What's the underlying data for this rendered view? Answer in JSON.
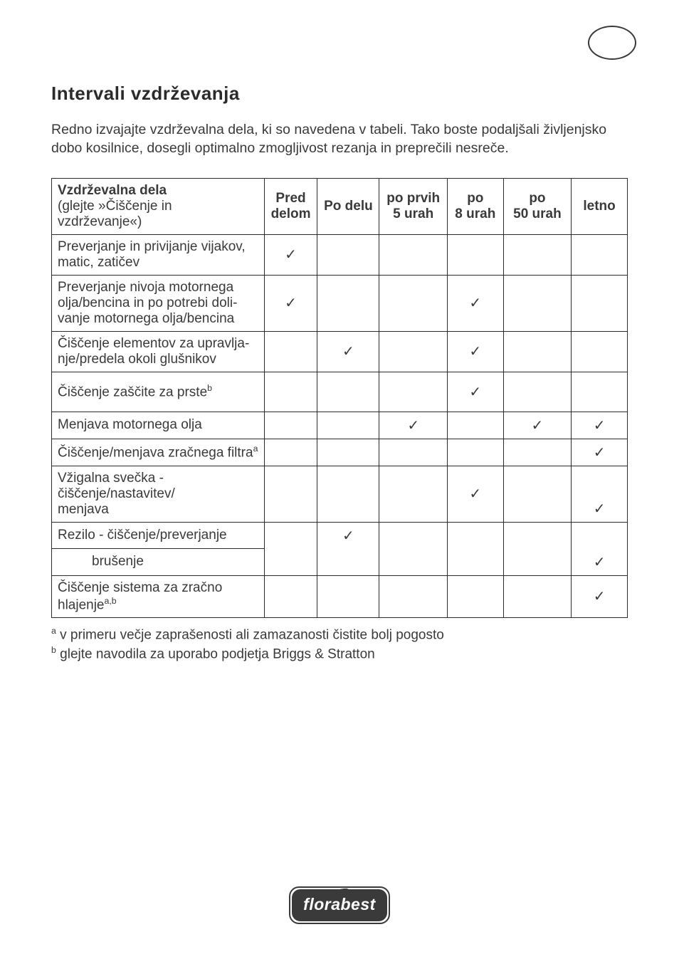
{
  "corner_oval": true,
  "heading": "Intervali vzdrževanja",
  "intro": "Redno izvajajte vzdrževalna dela, ki so navedena v tabeli. Tako boste podaljšali življenjsko dobo kosilnice, dosegli optimalno zmogljivost rezanja in preprečili nesreče.",
  "table": {
    "header": {
      "col0_line1": "Vzdrževalna dela",
      "col0_line2": "(glejte »Čiščenje in vzdrževanje«)",
      "col1_line1": "Pred",
      "col1_line2": "delom",
      "col2": "Po delu",
      "col3_line1": "po prvih",
      "col3_line2": "5 urah",
      "col4_line1": "po",
      "col4_line2": "8 urah",
      "col5_line1": "po",
      "col5_line2": "50 urah",
      "col6": "letno"
    },
    "checkmark": "✓",
    "rows": [
      {
        "label_html": "Preverjanje in privijanje vijakov, matic, zatičev",
        "checks": [
          true,
          false,
          false,
          false,
          false,
          false
        ],
        "split": false
      },
      {
        "label_html": "Preverjanje nivoja motornega olja/bencina in po potrebi doli­vanje motornega olja/bencina",
        "checks": [
          true,
          false,
          false,
          true,
          false,
          false
        ],
        "split": false
      },
      {
        "label_html": "Čiščenje elementov za upravlja­nje/predela okoli glušnikov",
        "checks": [
          false,
          true,
          false,
          true,
          false,
          false
        ],
        "split": false
      },
      {
        "label_html": "Čiščenje zaščite za prste<sup>b</sup>",
        "checks": [
          false,
          false,
          false,
          true,
          false,
          false
        ],
        "split": false,
        "tall": true
      },
      {
        "label_html": "Menjava motornega olja",
        "checks": [
          false,
          false,
          true,
          false,
          true,
          true
        ],
        "split": false
      },
      {
        "label_html": "Čiščenje/menjava zračnega filtra<sup>a</sup>",
        "checks": [
          false,
          false,
          false,
          false,
          false,
          true
        ],
        "split": false
      },
      {
        "label_html": "Vžigalna svečka -<br>čiščenje/nastavitev/<br>menjava",
        "checks": [
          false,
          false,
          false,
          true,
          false,
          true
        ],
        "split": false,
        "check_valign": [
          "",
          "",
          "",
          "middle",
          "",
          "bottom"
        ]
      },
      {
        "label_html": "Rezilo - čiščenje/preverjanje",
        "label2_html": "brušenje",
        "checks_top": [
          false,
          true,
          false,
          false,
          false,
          false
        ],
        "checks_bot": [
          false,
          false,
          false,
          false,
          false,
          true
        ],
        "split": true
      },
      {
        "label_html": "Čiščenje sistema za zračno hlajenje<sup>a,b</sup>",
        "checks": [
          false,
          false,
          false,
          false,
          false,
          true
        ],
        "split": false
      }
    ]
  },
  "footnotes": {
    "a": "v primeru večje zaprašenosti ali zamazanosti čistite bolj pogosto",
    "b": "glejte navodila za uporabo podjetja Briggs & Stratton"
  },
  "logo_text": "florabest"
}
